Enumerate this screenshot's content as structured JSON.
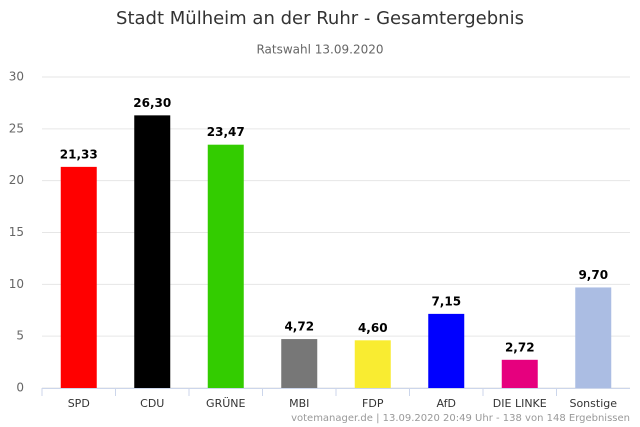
{
  "chart_data": {
    "type": "bar",
    "title": "Stadt Mülheim an der Ruhr - Gesamtergebnis",
    "subtitle": "Ratswahl 13.09.2020",
    "categories": [
      "SPD",
      "CDU",
      "GRÜNE",
      "MBI",
      "FDP",
      "AfD",
      "DIE LINKE",
      "Sonstige"
    ],
    "values": [
      21.33,
      26.3,
      23.47,
      4.72,
      4.6,
      7.15,
      2.72,
      9.7
    ],
    "value_labels": [
      "21,33",
      "26,30",
      "23,47",
      "4,72",
      "4,60",
      "7,15",
      "2,72",
      "9,70"
    ],
    "colors": [
      "#ff0000",
      "#000000",
      "#33cc00",
      "#777777",
      "#f9ec31",
      "#0000ff",
      "#e6007e",
      "#abbde3"
    ],
    "ylim": [
      0,
      30
    ],
    "yticks": [
      0,
      5,
      10,
      15,
      20,
      25,
      30
    ],
    "grid": true,
    "footer": "votemanager.de | 13.09.2020 20:49 Uhr - 138 von 148 Ergebnissen"
  }
}
